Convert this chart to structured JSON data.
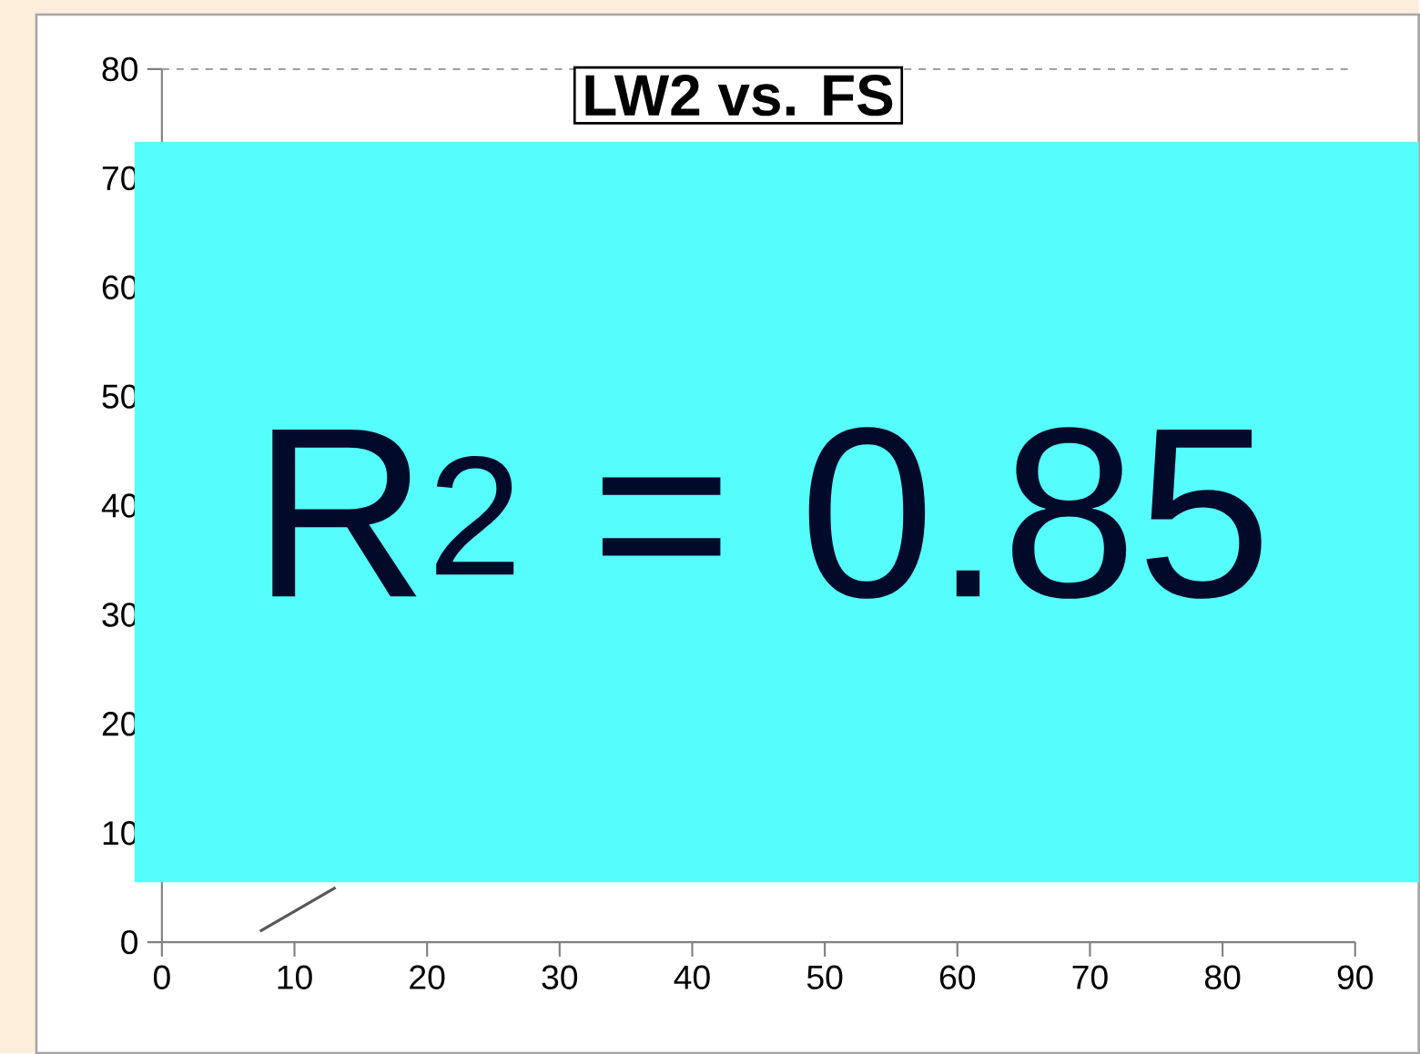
{
  "chart_data": {
    "type": "line",
    "title": "LW2 vs. FS",
    "x": [
      7.4,
      13.1
    ],
    "series": [
      {
        "color": "#595959",
        "values": [
          1,
          5
        ]
      }
    ],
    "xlim": [
      0,
      90
    ],
    "ylim": [
      0,
      80
    ],
    "xticks": [
      0,
      10,
      20,
      30,
      40,
      50,
      60,
      70,
      80,
      90
    ],
    "yticks": [
      0,
      10,
      20,
      30,
      40,
      50,
      60,
      70,
      80
    ],
    "grid": "y",
    "marker": "none",
    "line_style": "solid",
    "annotations": [
      "R$^{2}$ = 0.85"
    ]
  }
}
